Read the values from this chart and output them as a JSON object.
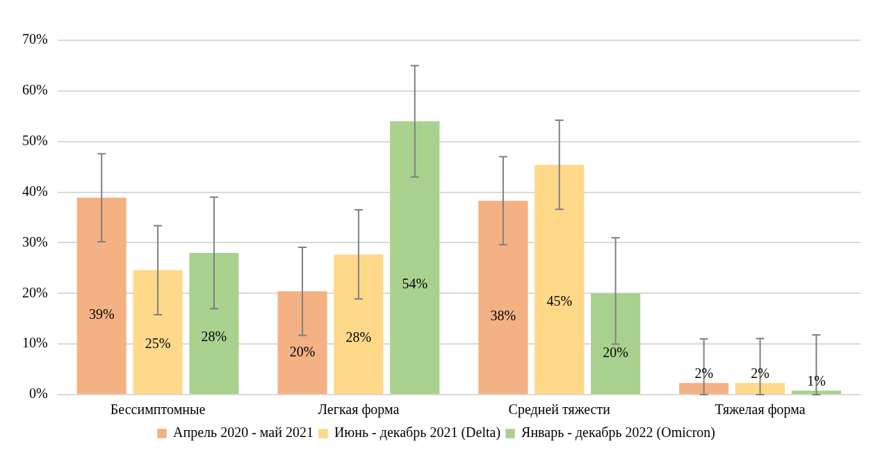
{
  "chart_data": {
    "type": "bar",
    "categories": [
      "Бессимптомные",
      "Легкая форма",
      "Средней тяжести",
      "Тяжелая форма"
    ],
    "series": [
      {
        "name": "Апрель 2020 - май 2021",
        "color": "#f4b183",
        "values": [
          38.9,
          20.4,
          38.3,
          2.3
        ],
        "value_labels": [
          "39%",
          "20%",
          "38%",
          "2%"
        ],
        "errors": [
          [
            30.2,
            47.6
          ],
          [
            11.7,
            29.1
          ],
          [
            29.6,
            47
          ],
          [
            0,
            11
          ]
        ]
      },
      {
        "name": "Июнь - декабрь 2021 (Delta)",
        "color": "#ffd98a",
        "values": [
          24.6,
          27.7,
          45.4,
          2.3
        ],
        "value_labels": [
          "25%",
          "28%",
          "45%",
          "2%"
        ],
        "errors": [
          [
            15.8,
            33.4
          ],
          [
            18.9,
            36.5
          ],
          [
            36.6,
            54.2
          ],
          [
            0,
            11.1
          ]
        ]
      },
      {
        "name": "Январь - декабрь 2022 (Omicron)",
        "color": "#a9d18e",
        "values": [
          28,
          54,
          20,
          0.8
        ],
        "value_labels": [
          "28%",
          "54%",
          "20%",
          "1%"
        ],
        "errors": [
          [
            17,
            39
          ],
          [
            43,
            65
          ],
          [
            10,
            31
          ],
          [
            0,
            11.8
          ]
        ]
      }
    ],
    "ylim": [
      0,
      70
    ],
    "yticks": [
      {
        "value": 0,
        "label": "0%"
      },
      {
        "value": 10,
        "label": "10%"
      },
      {
        "value": 20,
        "label": "20%"
      },
      {
        "value": 30,
        "label": "30%"
      },
      {
        "value": 40,
        "label": "40%"
      },
      {
        "value": 50,
        "label": "50%"
      },
      {
        "value": 60,
        "label": "60%"
      },
      {
        "value": 70,
        "label": "70%"
      }
    ],
    "grid": "y",
    "legend": "bottom"
  }
}
